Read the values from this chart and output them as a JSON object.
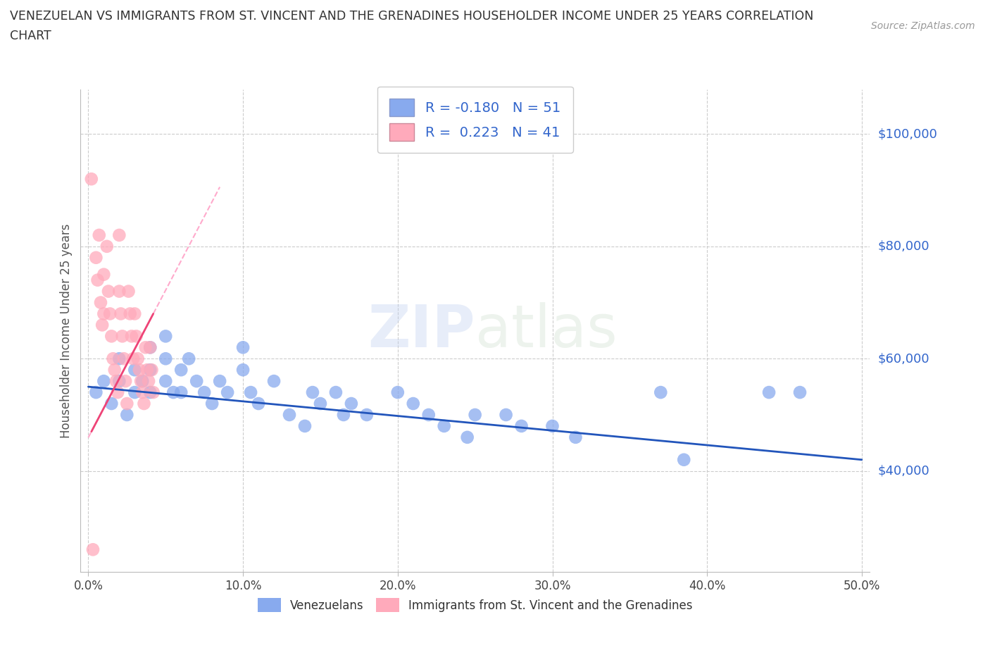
{
  "title_line1": "VENEZUELAN VS IMMIGRANTS FROM ST. VINCENT AND THE GRENADINES HOUSEHOLDER INCOME UNDER 25 YEARS CORRELATION",
  "title_line2": "CHART",
  "source": "Source: ZipAtlas.com",
  "ylabel": "Householder Income Under 25 years",
  "xlim": [
    -0.005,
    0.505
  ],
  "ylim": [
    22000,
    108000
  ],
  "yticks": [
    40000,
    60000,
    80000,
    100000
  ],
  "ytick_labels": [
    "$40,000",
    "$60,000",
    "$80,000",
    "$100,000"
  ],
  "xticks": [
    0.0,
    0.1,
    0.2,
    0.3,
    0.4,
    0.5
  ],
  "xtick_labels": [
    "0.0%",
    "10.0%",
    "20.0%",
    "30.0%",
    "40.0%",
    "50.0%"
  ],
  "blue_color": "#88aaee",
  "pink_color": "#ffaabb",
  "trend_blue": "#2255bb",
  "trend_pink": "#ee4477",
  "trend_pink_dashed": "#ffaacc",
  "watermark_zip": "ZIP",
  "watermark_atlas": "atlas",
  "legend_label_blue": "Venezuelans",
  "legend_label_pink": "Immigrants from St. Vincent and the Grenadines",
  "R_blue": -0.18,
  "N_blue": 51,
  "R_pink": 0.223,
  "N_pink": 41,
  "venezuelan_x": [
    0.005,
    0.01,
    0.015,
    0.02,
    0.02,
    0.025,
    0.03,
    0.03,
    0.035,
    0.04,
    0.04,
    0.04,
    0.05,
    0.05,
    0.05,
    0.055,
    0.06,
    0.06,
    0.065,
    0.07,
    0.075,
    0.08,
    0.085,
    0.09,
    0.1,
    0.1,
    0.105,
    0.11,
    0.12,
    0.13,
    0.14,
    0.145,
    0.15,
    0.16,
    0.165,
    0.17,
    0.18,
    0.2,
    0.21,
    0.22,
    0.23,
    0.245,
    0.25,
    0.27,
    0.28,
    0.3,
    0.315,
    0.37,
    0.385,
    0.44,
    0.46
  ],
  "venezuelan_y": [
    54000,
    56000,
    52000,
    60000,
    56000,
    50000,
    54000,
    58000,
    56000,
    62000,
    58000,
    54000,
    64000,
    60000,
    56000,
    54000,
    58000,
    54000,
    60000,
    56000,
    54000,
    52000,
    56000,
    54000,
    58000,
    62000,
    54000,
    52000,
    56000,
    50000,
    48000,
    54000,
    52000,
    54000,
    50000,
    52000,
    50000,
    54000,
    52000,
    50000,
    48000,
    46000,
    50000,
    50000,
    48000,
    48000,
    46000,
    54000,
    42000,
    54000,
    54000
  ],
  "stvincent_x": [
    0.002,
    0.003,
    0.005,
    0.006,
    0.007,
    0.008,
    0.009,
    0.01,
    0.01,
    0.012,
    0.013,
    0.014,
    0.015,
    0.016,
    0.017,
    0.018,
    0.019,
    0.02,
    0.02,
    0.021,
    0.022,
    0.023,
    0.024,
    0.025,
    0.026,
    0.027,
    0.028,
    0.029,
    0.03,
    0.031,
    0.032,
    0.033,
    0.034,
    0.035,
    0.036,
    0.037,
    0.038,
    0.039,
    0.04,
    0.041,
    0.042
  ],
  "stvincent_y": [
    92000,
    26000,
    78000,
    74000,
    82000,
    70000,
    66000,
    75000,
    68000,
    80000,
    72000,
    68000,
    64000,
    60000,
    58000,
    56000,
    54000,
    82000,
    72000,
    68000,
    64000,
    60000,
    56000,
    52000,
    72000,
    68000,
    64000,
    60000,
    68000,
    64000,
    60000,
    58000,
    56000,
    54000,
    52000,
    62000,
    58000,
    56000,
    62000,
    58000,
    54000
  ],
  "blue_trend_x0": 0.0,
  "blue_trend_x1": 0.5,
  "blue_trend_y0": 55000,
  "blue_trend_y1": 42000,
  "pink_trend_solid_x0": 0.002,
  "pink_trend_solid_x1": 0.042,
  "pink_trend_y0": 47000,
  "pink_trend_y1": 68000,
  "pink_trend_dash_x0": 0.0,
  "pink_trend_dash_x1": 0.042,
  "pink_trend_dash_y0": 43000,
  "pink_trend_dash_y1": 68000,
  "background_color": "#ffffff",
  "grid_color": "#cccccc",
  "text_color_blue": "#3366cc",
  "title_color": "#333333"
}
